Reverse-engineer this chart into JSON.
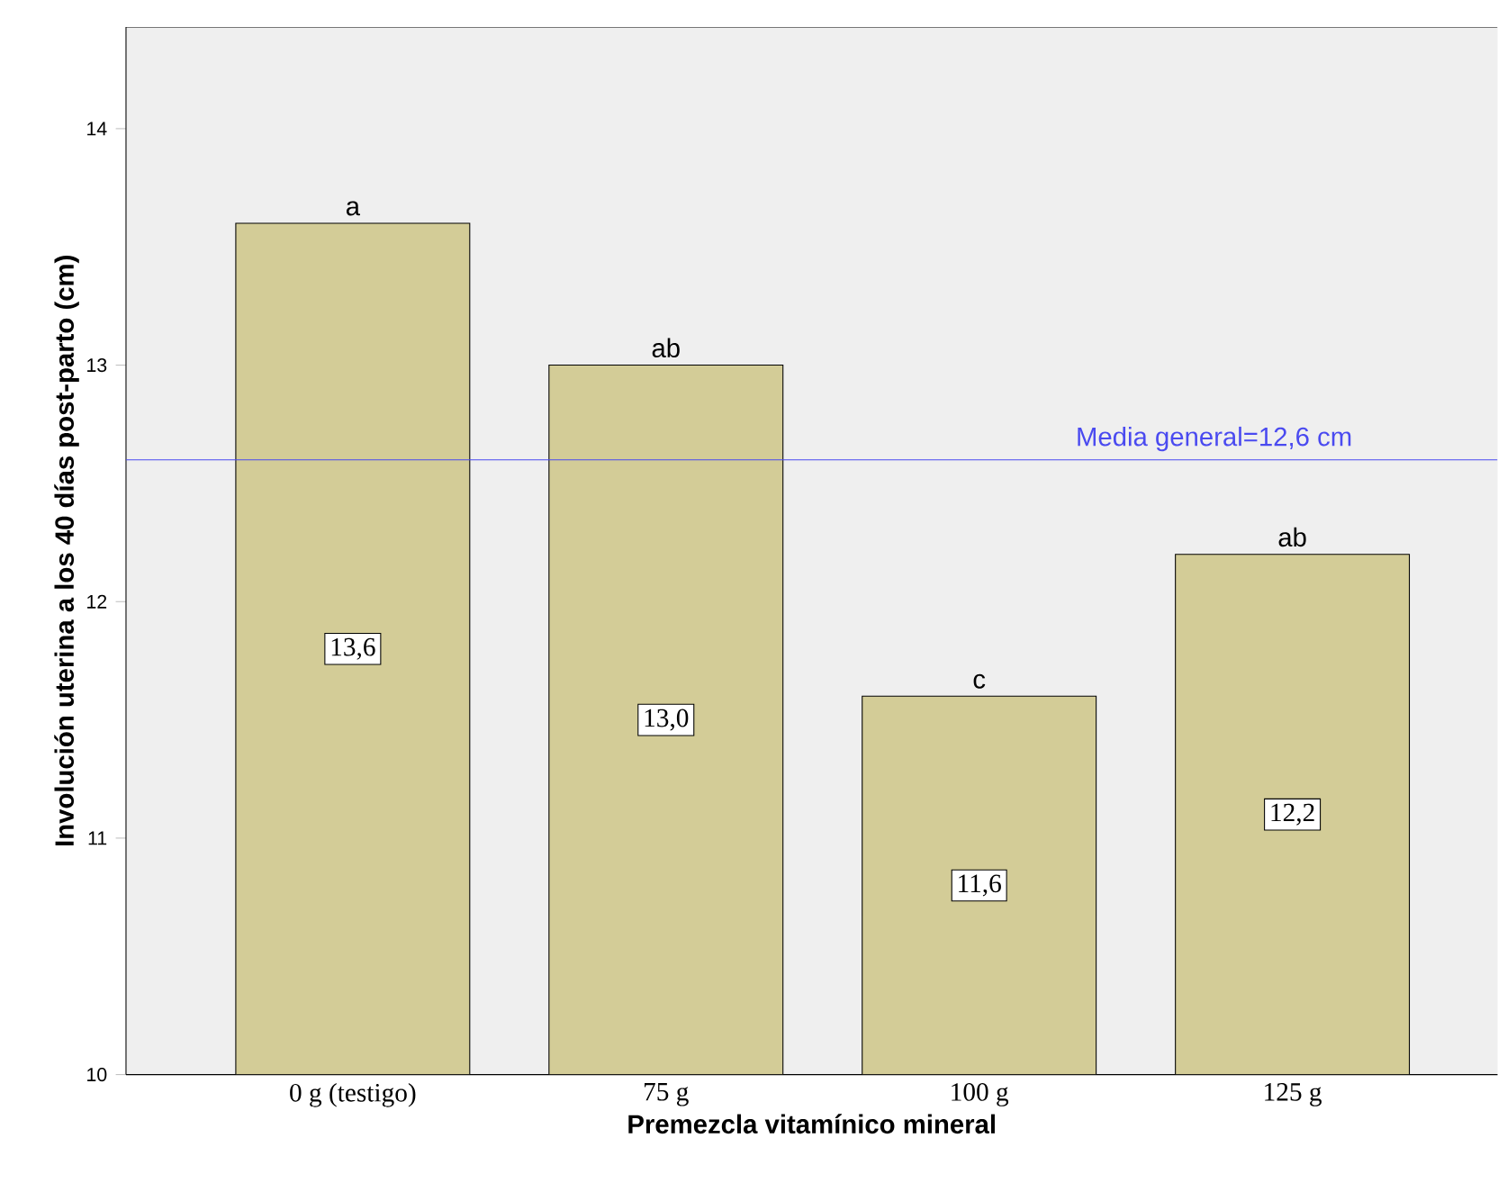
{
  "chart_data": {
    "type": "bar",
    "xlabel": "Premezcla vitamínico mineral",
    "ylabel": "Involución uterina a los 40 días post-parto (cm)",
    "categories": [
      "0 g (testigo)",
      "75 g",
      "100 g",
      "125 g"
    ],
    "values": [
      13.6,
      13.0,
      11.6,
      12.2
    ],
    "value_labels": [
      "13,6",
      "13,0",
      "11,6",
      "12,2"
    ],
    "color": "#d3cc97",
    "ylim": [
      10,
      14.43
    ],
    "yticks": [
      10,
      11,
      12,
      13,
      14
    ],
    "ref_lines": [
      {
        "axis": "y",
        "value": 12.6,
        "label": "Media general=12,6 cm",
        "color": "#4a4af0"
      }
    ],
    "annotations": [
      {
        "text": "a",
        "x": "0 g (testigo)",
        "y": 13.6
      },
      {
        "text": "ab",
        "x": "75 g",
        "y": 13.0
      },
      {
        "text": "c",
        "x": "100 g",
        "y": 11.6
      },
      {
        "text": "ab",
        "x": "125 g",
        "y": 12.2
      }
    ]
  }
}
